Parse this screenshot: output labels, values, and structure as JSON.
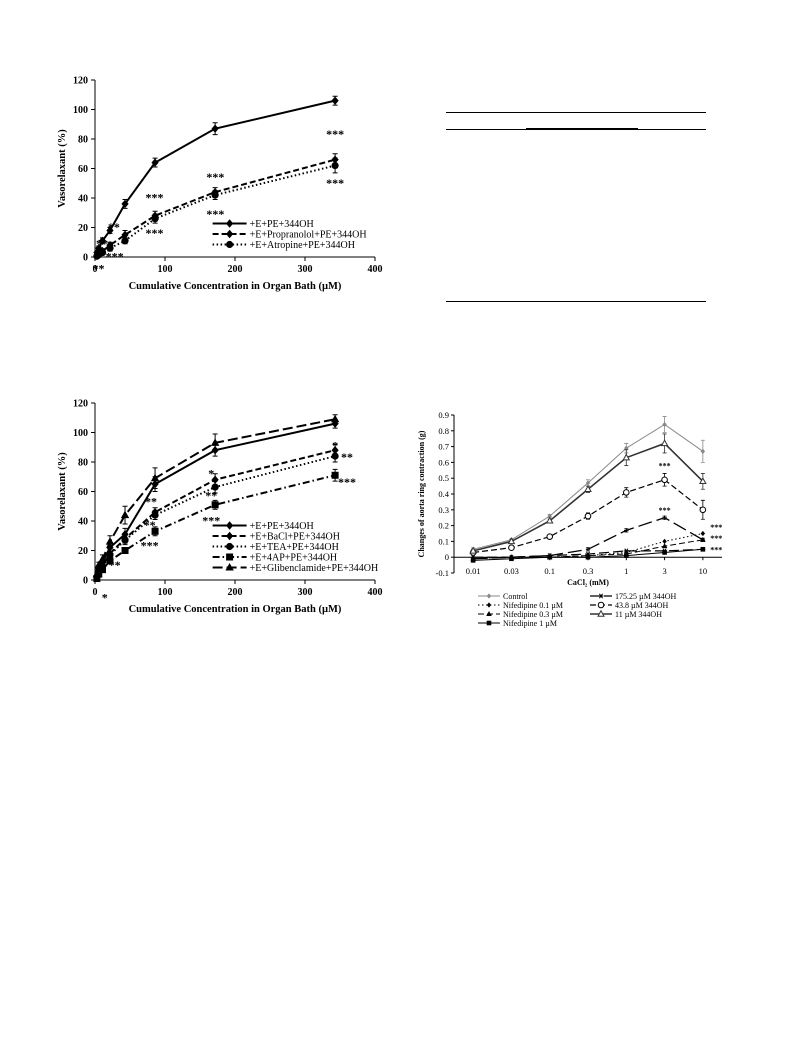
{
  "chart_data": [
    {
      "id": "A",
      "type": "line",
      "xlabel": "Cumulative Concentration in Organ Bath (µM)",
      "ylabel": "Vasorelaxant (%)",
      "xlim": [
        0,
        400
      ],
      "ylim": [
        0,
        120
      ],
      "xticks": [
        "0",
        "100",
        "200",
        "300",
        "400"
      ],
      "yticks": [
        "0",
        "20",
        "40",
        "60",
        "80",
        "100",
        "120"
      ],
      "grid": false,
      "legend_position": "bottom-right",
      "x": [
        2.7,
        5.4,
        10.7,
        21.4,
        42.9,
        85.8,
        171.6,
        343
      ],
      "series": [
        {
          "name": "+E+PE+344OH",
          "dash": "solid",
          "marker": "diamond",
          "values": [
            3,
            6,
            11,
            18,
            36,
            64,
            87,
            106
          ],
          "err": [
            1,
            1.5,
            2,
            2,
            3,
            3,
            4,
            3
          ]
        },
        {
          "name": "+E+Propranolol+PE+344OH",
          "dash": "dash",
          "marker": "diamond",
          "values": [
            1,
            2,
            4,
            8,
            15,
            28,
            44,
            66
          ],
          "err": [
            1,
            1,
            1.5,
            2,
            3,
            3,
            3,
            4
          ]
        },
        {
          "name": "+E+Atropine+PE+344OH",
          "dash": "dot",
          "marker": "circle",
          "values": [
            0.5,
            1.5,
            3,
            6,
            11,
            26,
            42,
            62
          ],
          "err": [
            1,
            1,
            1,
            2,
            2,
            3,
            3,
            5
          ]
        }
      ],
      "annotations": [
        {
          "x": 5,
          "y": -5,
          "text": "**"
        },
        {
          "x": 10,
          "y": 12,
          "text": "**"
        },
        {
          "x": 27,
          "y": 23,
          "text": "**"
        },
        {
          "x": 28,
          "y": 3,
          "text": "***"
        },
        {
          "x": 85,
          "y": 43,
          "text": "***"
        },
        {
          "x": 85,
          "y": 19,
          "text": "***"
        },
        {
          "x": 172,
          "y": 57,
          "text": "***"
        },
        {
          "x": 172,
          "y": 32,
          "text": "***"
        },
        {
          "x": 343,
          "y": 86,
          "text": "***"
        },
        {
          "x": 343,
          "y": 53,
          "text": "***"
        }
      ]
    },
    {
      "id": "B",
      "type": "line",
      "xlabel": "Cumulative Concentration in Organ Bath (µM)",
      "ylabel": "Vasorelaxant (%)",
      "xlim": [
        0,
        400
      ],
      "ylim": [
        0,
        120
      ],
      "xticks": [
        "0",
        "100",
        "200",
        "300",
        "400"
      ],
      "yticks": [
        "0",
        "20",
        "40",
        "60",
        "80",
        "100",
        "120"
      ],
      "grid": false,
      "legend_position": "bottom-right",
      "x": [
        2.7,
        5.4,
        10.7,
        21.4,
        42.9,
        85.8,
        171.6,
        343
      ],
      "series": [
        {
          "name": "+E+PE+344OH",
          "dash": "solid",
          "marker": "diamond",
          "values": [
            3,
            8,
            12,
            22,
            31,
            65,
            88,
            106
          ],
          "err": [
            1,
            2,
            2,
            3,
            4,
            5,
            4,
            3
          ]
        },
        {
          "name": "+E+BaCl+PE+344OH",
          "dash": "dash",
          "marker": "diamond",
          "values": [
            2,
            6,
            10,
            18,
            28,
            46,
            68,
            88
          ],
          "err": [
            1,
            1.5,
            2,
            3,
            3,
            3,
            4,
            4
          ]
        },
        {
          "name": "+E+TEA+PE+344OH",
          "dash": "dot",
          "marker": "circle",
          "values": [
            2,
            6,
            9,
            17,
            27,
            44,
            63,
            84
          ],
          "err": [
            1,
            1.5,
            2,
            2,
            3,
            3,
            4,
            4
          ]
        },
        {
          "name": "+E+4AP+PE+344OH",
          "dash": "dashdot",
          "marker": "square",
          "values": [
            1,
            4,
            7,
            13,
            20,
            33,
            51,
            71
          ],
          "err": [
            1,
            1,
            1.5,
            2,
            2,
            3,
            3,
            4
          ]
        },
        {
          "name": "+E+Glibenclamide+PE+344OH",
          "dash": "longdash",
          "marker": "triangle",
          "values": [
            4,
            10,
            14,
            26,
            44,
            69,
            93,
            109
          ],
          "err": [
            1,
            2,
            3,
            4,
            6,
            7,
            6,
            3
          ]
        }
      ],
      "annotations": [
        {
          "x": 14,
          "y": -9,
          "text": "*"
        },
        {
          "x": 28,
          "y": 13,
          "text": "**"
        },
        {
          "x": 80,
          "y": 56,
          "text": "**"
        },
        {
          "x": 78,
          "y": 40,
          "text": "**"
        },
        {
          "x": 78,
          "y": 26,
          "text": "***"
        },
        {
          "x": 166,
          "y": 75,
          "text": "*"
        },
        {
          "x": 166,
          "y": 60,
          "text": "**"
        },
        {
          "x": 166,
          "y": 43,
          "text": "***"
        },
        {
          "x": 343,
          "y": 94,
          "text": "*"
        },
        {
          "x": 360,
          "y": 86,
          "text": "**"
        },
        {
          "x": 360,
          "y": 69,
          "text": "***"
        }
      ]
    },
    {
      "id": "D",
      "type": "line",
      "xlabel": "CaCl₂ (mM)",
      "ylabel": "Changes of aorta ring contraction (g)",
      "x_categories": [
        "0.01",
        "0.03",
        "0.1",
        "0.3",
        "1",
        "3",
        "10"
      ],
      "ylim": [
        -0.1,
        0.9
      ],
      "yticks": [
        "-0.1",
        "0",
        "0.1",
        "0.2",
        "0.3",
        "0.4",
        "0.5",
        "0.6",
        "0.7",
        "0.8",
        "0.9"
      ],
      "grid": false,
      "legend_position": "bottom",
      "series": [
        {
          "name": "Control",
          "color": "#888888",
          "width": 1,
          "dash": "solid",
          "marker": "diamond-small",
          "values": [
            0.05,
            0.11,
            0.26,
            0.47,
            0.69,
            0.84,
            0.67
          ],
          "err": [
            0.01,
            0.01,
            0.01,
            0.02,
            0.03,
            0.05,
            0.07
          ]
        },
        {
          "name": "175.25 µM 344OH",
          "color": "#000000",
          "width": 1.2,
          "dash": "longdash",
          "marker": "asterisk",
          "values": [
            0.0,
            0.0,
            0.01,
            0.02,
            0.04,
            0.04,
            0.05
          ],
          "err": [
            0,
            0,
            0,
            0,
            0,
            0,
            0
          ]
        },
        {
          "name": "Nifedipine 0.1 µM",
          "color": "#000000",
          "width": 1,
          "dash": "dot",
          "marker": "diamond-small",
          "values": [
            -0.01,
            0.0,
            0.0,
            0.01,
            0.03,
            0.1,
            0.15
          ],
          "err": [
            0,
            0,
            0,
            0,
            0,
            0,
            0
          ]
        },
        {
          "name": "43.8 µM 344OH",
          "color": "#000000",
          "width": 1.2,
          "dash": "dash",
          "marker": "open-circle",
          "values": [
            0.03,
            0.06,
            0.13,
            0.26,
            0.41,
            0.49,
            0.3
          ],
          "err": [
            0.01,
            0.01,
            0.01,
            0.02,
            0.03,
            0.04,
            0.06
          ]
        },
        {
          "name": "Nifedipine 0.3 µM",
          "color": "#000000",
          "width": 1,
          "dash": "dash",
          "marker": "triangle-small",
          "values": [
            -0.01,
            0.0,
            0.0,
            0.01,
            0.02,
            0.07,
            0.11
          ],
          "err": [
            0,
            0,
            0,
            0,
            0,
            0,
            0
          ]
        },
        {
          "name": "11 µM 344OH",
          "color": "#333333",
          "width": 1.6,
          "dash": "solid",
          "marker": "open-triangle",
          "values": [
            0.04,
            0.1,
            0.23,
            0.43,
            0.63,
            0.72,
            0.48
          ],
          "err": [
            0.01,
            0.01,
            0.01,
            0.02,
            0.05,
            0.06,
            0.05
          ]
        },
        {
          "name": "Nifedipine 1 µM",
          "color": "#000000",
          "width": 1,
          "dash": "solid",
          "marker": "square-small",
          "values": [
            -0.02,
            -0.01,
            0.0,
            0.0,
            0.01,
            0.03,
            0.05
          ],
          "err": [
            0,
            0,
            0,
            0,
            0,
            0,
            0
          ]
        },
        {
          "name": "",
          "color": "#000000",
          "width": 1.3,
          "dash": "xlongdash",
          "marker": "cross-small",
          "values": [
            -0.01,
            0.0,
            0.01,
            0.05,
            0.17,
            0.25,
            0.11
          ],
          "err": [
            0,
            0,
            0,
            0.01,
            0.01,
            0.01,
            0.01
          ]
        }
      ],
      "annotations": [
        {
          "xi": 5,
          "y": 0.58,
          "text": "***"
        },
        {
          "xi": 5,
          "y": 0.3,
          "text": "***"
        },
        {
          "xi": 6.35,
          "y": 0.19,
          "text": "***"
        },
        {
          "xi": 6.35,
          "y": 0.12,
          "text": "***"
        },
        {
          "xi": 6.35,
          "y": 0.05,
          "text": "***"
        }
      ]
    }
  ]
}
